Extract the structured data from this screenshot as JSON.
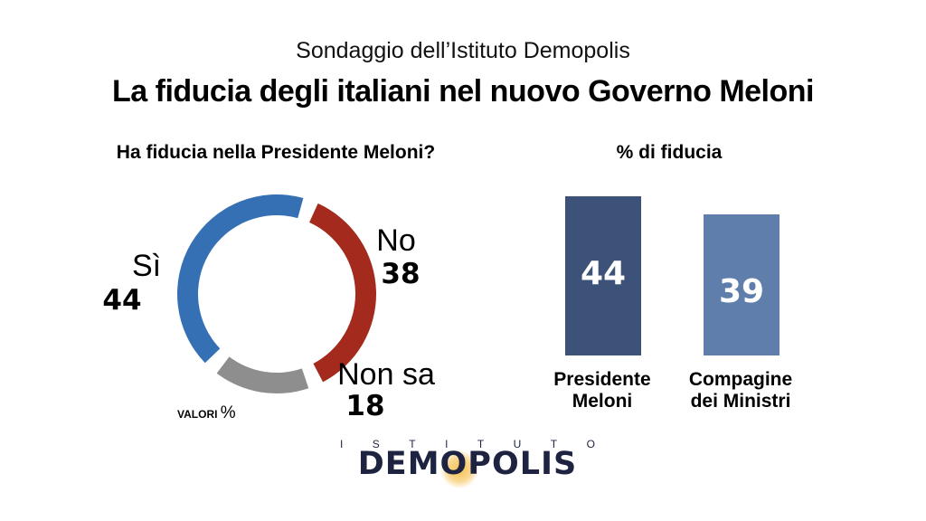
{
  "header": {
    "subtitle": "Sondaggio dell’Istituto Demopolis",
    "title": "La fiducia degli italiani nel nuovo Governo Meloni"
  },
  "chart_data": [
    {
      "type": "pie",
      "title": "Ha fiducia nella Presidente Meloni?",
      "slices": [
        {
          "label": "No",
          "value": 38,
          "color": "#a32a1c"
        },
        {
          "label": "Non sa",
          "value": 18,
          "color": "#8e8e8e"
        },
        {
          "label": "Sì",
          "value": 44,
          "color": "#3670b4"
        }
      ],
      "note_text": "VALORI",
      "note_unit": "%"
    },
    {
      "type": "bar",
      "title": "% di fiducia",
      "categories": [
        "Presidente Meloni",
        "Compagine dei Ministri"
      ],
      "category_lines": [
        [
          "Presidente",
          "Meloni"
        ],
        [
          "Compagine",
          "dei Ministri"
        ]
      ],
      "values": [
        44,
        39
      ],
      "colors": [
        "#3d5279",
        "#5f7eab"
      ]
    }
  ],
  "logo": {
    "top_letters": [
      "I",
      "S",
      "T",
      "I",
      "T",
      "U",
      "T",
      "O"
    ],
    "name": "DEMOPOLIS"
  }
}
